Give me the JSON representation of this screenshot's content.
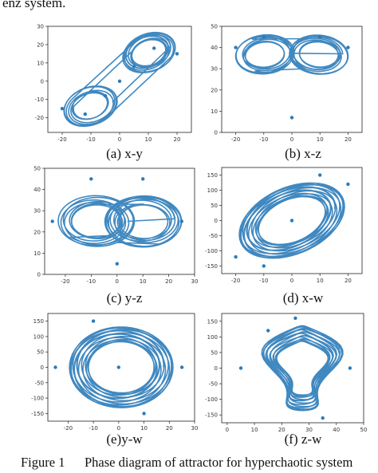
{
  "header_fragment": "enz system.",
  "figure": {
    "label": "Figure 1",
    "caption": "Phase diagram of attractor for hyperchaotic system"
  },
  "chart_data": [
    {
      "type": "scatter",
      "subcaption": "(a) x-y",
      "xlim": [
        -25,
        25
      ],
      "ylim": [
        -28,
        30
      ],
      "xticks": [
        -20,
        -10,
        0,
        10,
        20
      ],
      "yticks": [
        30,
        20,
        10,
        0,
        -10,
        -20
      ],
      "series": [
        {
          "color": "#2b7bb9",
          "shape": "two-lobe band along diagonal",
          "x": [
            -20,
            -12,
            -5,
            0,
            5,
            12,
            20
          ],
          "y": [
            -15,
            -18,
            -8,
            0,
            8,
            18,
            15
          ]
        }
      ]
    },
    {
      "type": "scatter",
      "subcaption": "(b) x-z",
      "xlim": [
        -25,
        25
      ],
      "ylim": [
        0,
        50
      ],
      "xticks": [
        -20,
        -10,
        0,
        10,
        20
      ],
      "yticks": [
        50,
        40,
        30,
        20,
        10,
        0
      ],
      "series": [
        {
          "color": "#2b7bb9",
          "shape": "butterfly",
          "x": [
            -20,
            -10,
            0,
            10,
            20
          ],
          "y": [
            40,
            45,
            7,
            45,
            40
          ]
        }
      ]
    },
    {
      "type": "scatter",
      "subcaption": "(c) y-z",
      "xlim": [
        -28,
        30
      ],
      "ylim": [
        0,
        50
      ],
      "xticks": [
        -20,
        -10,
        0,
        10,
        20,
        30
      ],
      "yticks": [
        50,
        40,
        30,
        20,
        10,
        0
      ],
      "series": [
        {
          "color": "#2b7bb9",
          "shape": "double ring",
          "x": [
            -25,
            -10,
            0,
            10,
            25
          ],
          "y": [
            25,
            45,
            5,
            45,
            25
          ]
        }
      ]
    },
    {
      "type": "scatter",
      "subcaption": "(d) x-w",
      "xlim": [
        -25,
        25
      ],
      "ylim": [
        -175,
        175
      ],
      "xticks": [
        -20,
        -10,
        0,
        10,
        20
      ],
      "yticks": [
        150,
        100,
        50,
        0,
        -50,
        -100,
        -150
      ],
      "series": [
        {
          "color": "#2b7bb9",
          "shape": "tilted parallelogram",
          "x": [
            -20,
            -10,
            0,
            10,
            20
          ],
          "y": [
            -120,
            -150,
            0,
            150,
            120
          ]
        }
      ]
    },
    {
      "type": "scatter",
      "subcaption": "(e)y-w",
      "xlim": [
        -28,
        30
      ],
      "ylim": [
        -175,
        175
      ],
      "xticks": [
        -20,
        -10,
        0,
        10,
        20,
        30
      ],
      "yticks": [
        150,
        100,
        50,
        0,
        -50,
        -100,
        -150
      ],
      "series": [
        {
          "color": "#2b7bb9",
          "shape": "octagonal blob",
          "x": [
            -25,
            -10,
            0,
            10,
            25
          ],
          "y": [
            0,
            150,
            0,
            -150,
            0
          ]
        }
      ]
    },
    {
      "type": "scatter",
      "subcaption": "(f) z-w",
      "xlim": [
        -2,
        50
      ],
      "ylim": [
        -175,
        175
      ],
      "xticks": [
        0,
        10,
        20,
        30,
        40,
        50
      ],
      "yticks": [
        150,
        100,
        50,
        0,
        -50,
        -100,
        -150
      ],
      "series": [
        {
          "color": "#2b7bb9",
          "shape": "vertical band",
          "x": [
            5,
            15,
            25,
            35,
            45
          ],
          "y": [
            0,
            120,
            160,
            -160,
            0
          ]
        }
      ]
    }
  ]
}
